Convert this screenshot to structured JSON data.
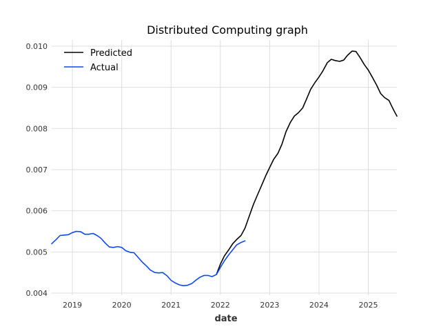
{
  "chart_data": {
    "type": "line",
    "title": "Distributed Computing graph",
    "xlabel": "date",
    "ylabel": "",
    "xlim": [
      2018.58,
      2025.58
    ],
    "ylim": [
      0.00395,
      0.01015
    ],
    "x_ticks": [
      2019,
      2020,
      2021,
      2022,
      2023,
      2024,
      2025
    ],
    "x_tick_labels": [
      "2019",
      "2020",
      "2021",
      "2022",
      "2023",
      "2024",
      "2025"
    ],
    "y_ticks": [
      0.004,
      0.005,
      0.006,
      0.007,
      0.008,
      0.009,
      0.01
    ],
    "y_tick_labels": [
      "0.004",
      "0.005",
      "0.006",
      "0.007",
      "0.008",
      "0.009",
      "0.010"
    ],
    "grid": true,
    "legend_position": "top-left",
    "series": [
      {
        "name": "Predicted",
        "color": "#000000",
        "x": [
          2021.92,
          2022.0,
          2022.08,
          2022.17,
          2022.25,
          2022.33,
          2022.42,
          2022.5,
          2022.58,
          2022.67,
          2022.75,
          2022.83,
          2022.92,
          2023.0,
          2023.08,
          2023.17,
          2023.25,
          2023.33,
          2023.42,
          2023.5,
          2023.58,
          2023.67,
          2023.75,
          2023.83,
          2023.92,
          2024.0,
          2024.08,
          2024.17,
          2024.25,
          2024.33,
          2024.42,
          2024.5,
          2024.58,
          2024.67,
          2024.75,
          2024.83,
          2024.92,
          2025.0,
          2025.08,
          2025.17,
          2025.25,
          2025.33,
          2025.42,
          2025.5,
          2025.58
        ],
        "y": [
          0.00445,
          0.0047,
          0.0049,
          0.00505,
          0.0052,
          0.0053,
          0.0054,
          0.00558,
          0.00585,
          0.00615,
          0.00638,
          0.0066,
          0.00685,
          0.00705,
          0.00725,
          0.0074,
          0.00762,
          0.00792,
          0.00815,
          0.0083,
          0.00838,
          0.0085,
          0.00872,
          0.00895,
          0.00912,
          0.00925,
          0.0094,
          0.0096,
          0.00968,
          0.00965,
          0.00963,
          0.00966,
          0.00978,
          0.00988,
          0.00987,
          0.00973,
          0.00955,
          0.00942,
          0.00925,
          0.00905,
          0.00885,
          0.00875,
          0.00868,
          0.00848,
          0.0083
        ]
      },
      {
        "name": "Actual",
        "color": "#0a48ed",
        "x": [
          2018.58,
          2018.67,
          2018.75,
          2018.83,
          2018.92,
          2019.0,
          2019.08,
          2019.17,
          2019.25,
          2019.33,
          2019.42,
          2019.5,
          2019.58,
          2019.67,
          2019.75,
          2019.83,
          2019.92,
          2020.0,
          2020.08,
          2020.17,
          2020.25,
          2020.33,
          2020.42,
          2020.5,
          2020.58,
          2020.67,
          2020.75,
          2020.83,
          2020.92,
          2021.0,
          2021.08,
          2021.17,
          2021.25,
          2021.33,
          2021.42,
          2021.5,
          2021.58,
          2021.67,
          2021.75,
          2021.83,
          2021.92,
          2022.0,
          2022.08,
          2022.17,
          2022.25,
          2022.33,
          2022.42,
          2022.5
        ],
        "y": [
          0.0052,
          0.0053,
          0.0054,
          0.00541,
          0.00542,
          0.00547,
          0.0055,
          0.00549,
          0.00543,
          0.00543,
          0.00545,
          0.0054,
          0.00533,
          0.00521,
          0.00512,
          0.00511,
          0.00513,
          0.00511,
          0.00503,
          0.00499,
          0.00498,
          0.00487,
          0.00475,
          0.00466,
          0.00456,
          0.0045,
          0.00449,
          0.0045,
          0.00442,
          0.00431,
          0.00425,
          0.0042,
          0.00418,
          0.00419,
          0.00423,
          0.00431,
          0.00438,
          0.00443,
          0.00443,
          0.0044,
          0.00445,
          0.00462,
          0.00478,
          0.00493,
          0.00505,
          0.00517,
          0.00523,
          0.00527
        ]
      }
    ]
  }
}
